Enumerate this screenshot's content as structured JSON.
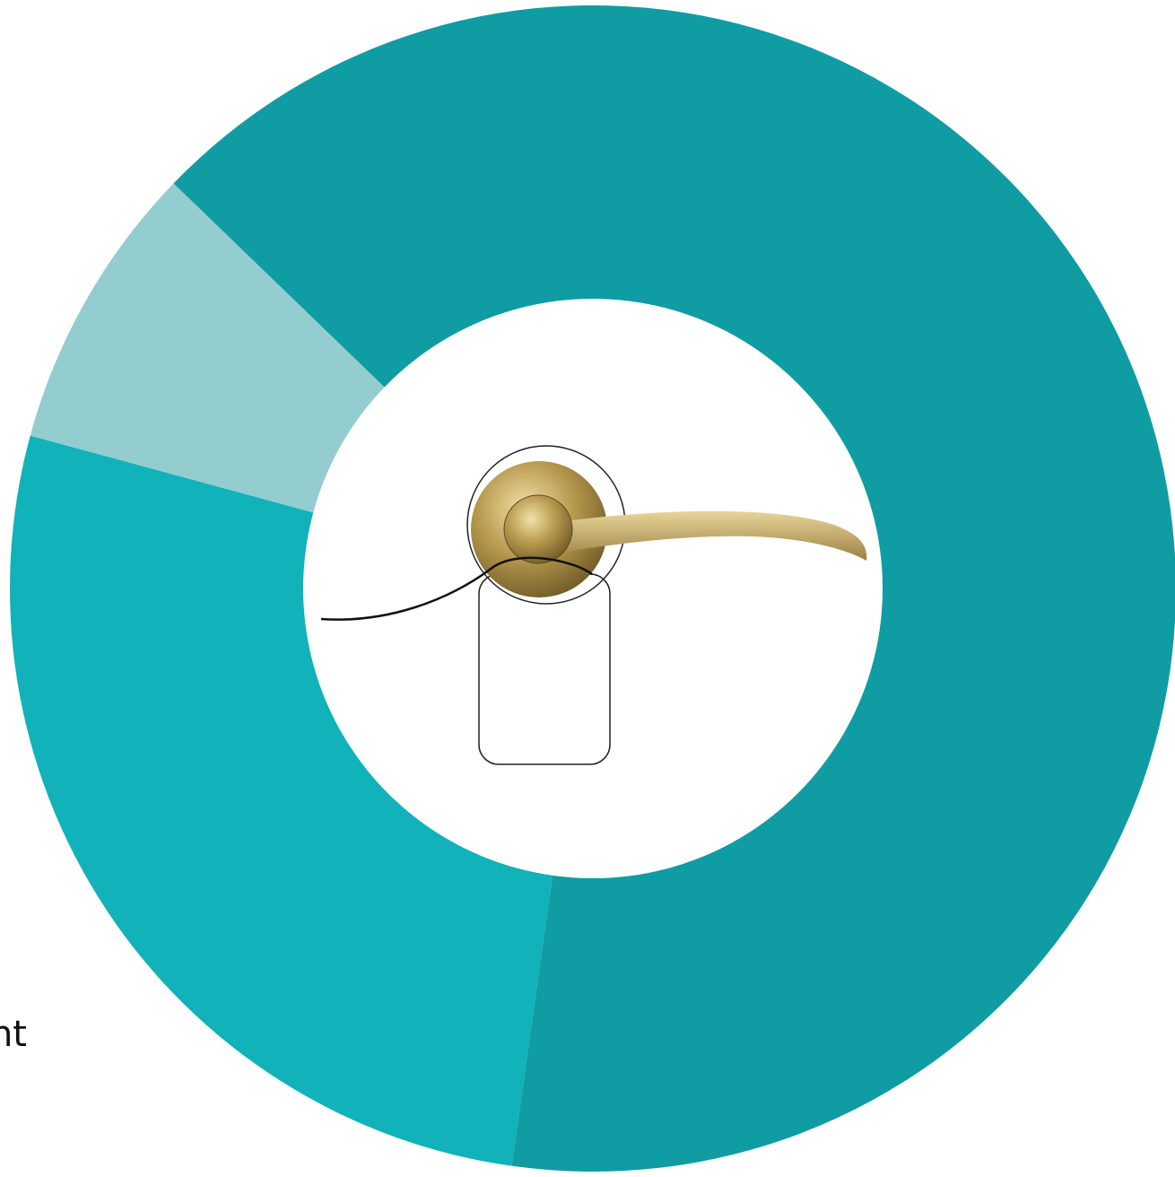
{
  "chart_data": {
    "type": "donut",
    "values": [
      65,
      27,
      8
    ],
    "colors": [
      "#109ca3",
      "#11b2ba",
      "#93cdd0"
    ],
    "annotation": "nt"
  }
}
